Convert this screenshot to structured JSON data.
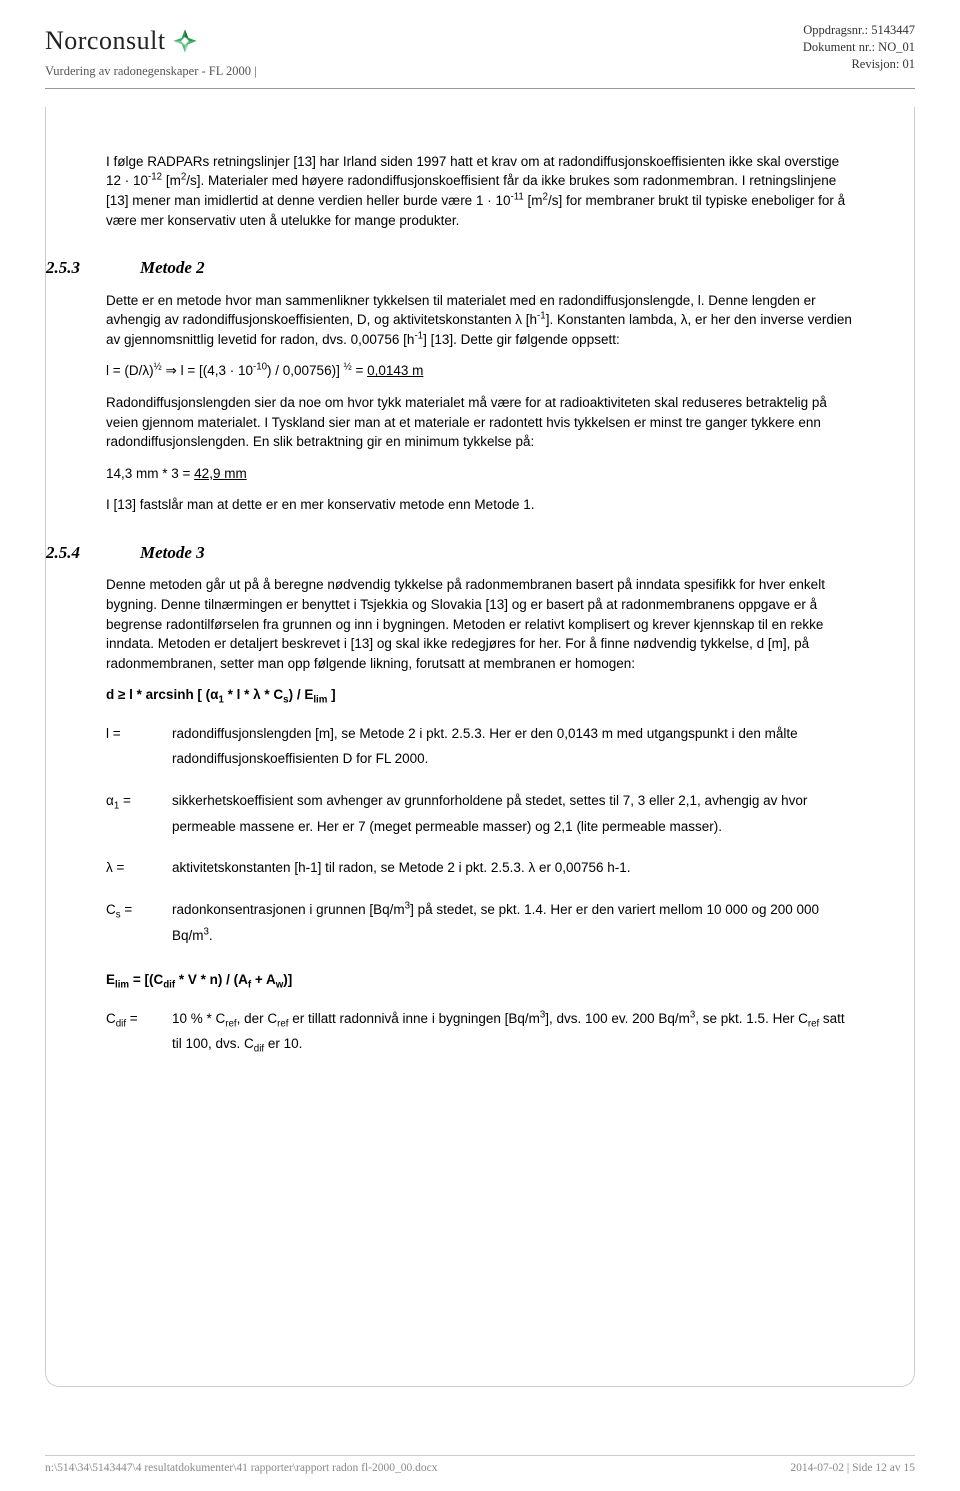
{
  "header": {
    "logo_text": "Norconsult",
    "subhead": "Vurdering av radonegenskaper - FL 2000 |",
    "meta_line1": "Oppdragsnr.: 5143447",
    "meta_line2": "Dokument nr.: NO_01",
    "meta_line3": "Revisjon: 01"
  },
  "intro_html": "I følge RADPARs retningslinjer [13] har Irland siden 1997 hatt et krav om at radondiffusjonskoeffisienten ikke skal overstige 12 · 10<sup>-12</sup> [m<sup>2</sup>/s]. Materialer med høyere radondiffusjonskoeffisient får da ikke brukes som radonmembran. I retningslinjene [13] mener man imidlertid at denne verdien heller burde være 1 · 10<sup>-11</sup> [m<sup>2</sup>/s] for membraner brukt til typiske eneboliger for å være mer konservativ uten å utelukke for mange produkter.",
  "sec253": {
    "num": "2.5.3",
    "title": "Metode 2",
    "p1_html": "Dette er en metode hvor man sammenlikner tykkelsen til materialet med en radondiffusjonslengde, l. Denne lengden er avhengig av radondiffusjonskoeffisienten, D, og aktivitetskonstanten λ [h<sup>-1</sup>]. Konstanten lambda, λ, er her den inverse verdien av gjennomsnittlig levetid for radon, dvs. 0,00756 [h<sup>-1</sup>] [13]. Dette gir følgende oppsett:",
    "eq_html": "l = (D/λ)<sup>½</sup> ⇒ l = [(4,3 · 10<sup>-10</sup>) / 0,00756)] <sup>½</sup> = <span class=\"underline\">0,0143 m</span>",
    "p2_html": "Radondiffusjonslengden sier da noe om hvor tykk materialet må være for at radioaktiviteten skal reduseres betraktelig på veien gjennom materialet. I Tyskland sier man at et materiale er radontett hvis tykkelsen er minst tre ganger tykkere enn radondiffusjonslengden. En slik betraktning gir en minimum tykkelse på:",
    "eq2_html": "14,3 mm * 3 = <span class=\"underline\">42,9 mm</span>",
    "p3": "I [13] fastslår man at dette er en mer konservativ metode enn Metode 1."
  },
  "sec254": {
    "num": "2.5.4",
    "title": "Metode 3",
    "p1_html": "Denne metoden går ut på å beregne nødvendig tykkelse på radonmembranen basert på inndata spesifikk for hver enkelt bygning. Denne tilnærmingen er benyttet i Tsjekkia og Slovakia [13] og er basert på at radonmembranens oppgave er å begrense radontilførselen fra grunnen og inn i bygningen. Metoden er relativt komplisert og krever kjennskap til en rekke inndata. Metoden er detaljert beskrevet i [13] og skal ikke redegjøres for her. For å finne nødvendig tykkelse, d [m], på radonmembranen, setter man opp følgende likning, forutsatt at membranen er homogen:",
    "formula_html": "d ≥ l * arcsinh [ (α<sub>1</sub> * l * λ * C<sub>s</sub>) / E<sub>lim</sub> ]",
    "defs": [
      {
        "sym_html": "l =",
        "txt_html": "radondiffusjonslengden [m], se Metode 2 i pkt. 2.5.3. Her er den 0,0143 m med utgangspunkt i den målte radondiffusjonskoeffisienten D for FL 2000."
      },
      {
        "sym_html": "α<sub>1</sub> =",
        "txt_html": "sikkerhetskoeffisient som avhenger av grunnforholdene på stedet, settes til 7, 3 eller 2,1, avhengig av hvor permeable massene er. Her er 7 (meget permeable masser) og 2,1 (lite permeable masser)."
      },
      {
        "sym_html": "λ =",
        "txt_html": "aktivitetskonstanten [h-1] til radon, se Metode 2 i pkt. 2.5.3. λ er 0,00756 h-1."
      },
      {
        "sym_html": "C<sub>s</sub> =",
        "txt_html": "radonkonsentrasjonen i grunnen [Bq/m<sup>3</sup>] på stedet, se pkt. 1.4. Her er den variert mellom 10 000 og 200 000 Bq/m<sup>3</sup>."
      }
    ],
    "formula2_html": "E<sub>lim</sub> = [(C<sub>dif</sub> * V * n) / (A<sub>f</sub> + A<sub>w</sub>)]",
    "def_cdif": {
      "sym_html": "C<sub>dif</sub> =",
      "txt_html": "10 % * C<sub>ref</sub>, der C<sub>ref</sub> er tillatt radonnivå inne i bygningen [Bq/m<sup>3</sup>], dvs. 100 ev. 200 Bq/m<sup>3</sup>, se pkt. 1.5. Her C<sub>ref</sub> satt til 100, dvs. C<sub>dif</sub> er 10."
    }
  },
  "footer": {
    "left": "n:\\514\\34\\5143447\\4 resultatdokumenter\\41 rapporter\\rapport radon fl-2000_00.docx",
    "right": "2014-07-02 | Side 12 av 15"
  }
}
